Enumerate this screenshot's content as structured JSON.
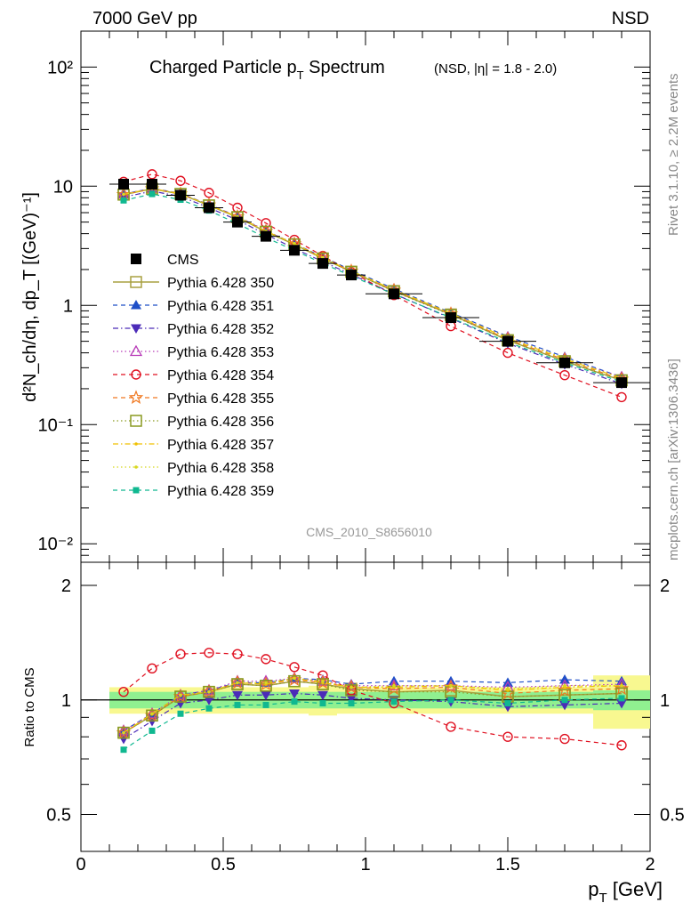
{
  "header": {
    "energy": "7000 GeV pp",
    "process": "NSD"
  },
  "title_main": "Charged Particle p",
  "title_sub": "T",
  "title_tail": " Spectrum",
  "title_small": "(NSD, |η| = 1.8 - 2.0)",
  "ylabel_main": "d²N_ch/dη, dp_T [(GeV)⁻¹]",
  "ylabel_ratio": "Ratio to CMS",
  "xlabel": "p",
  "xlabel_sub": "T",
  "xlabel_unit": " [GeV]",
  "watermark": "CMS_2010_S8656010",
  "side_top": "Rivet 3.1.10, ≥ 2.2M events",
  "side_bottom": "mcplots.cern.ch [arXiv:1306.3436]",
  "colors": {
    "cms": "#000000",
    "p350": "#a8a040",
    "p351": "#1f4fc8",
    "p352": "#4b2bb8",
    "p353": "#b83bb8",
    "p354": "#e01020",
    "p355": "#f07820",
    "p356": "#8a9a20",
    "p357": "#f0c000",
    "p358": "#d8d820",
    "p359": "#10b890",
    "band_inner": "#90f090",
    "band_outer": "#f8f890"
  },
  "chart_data": {
    "type": "line",
    "xlabel": "p_T [GeV]",
    "ylabel": "d²N_ch/dη, dp_T [(GeV)⁻¹]",
    "ylabel_ratio": "Ratio to CMS",
    "xlim": [
      0,
      2.0
    ],
    "ylim": [
      0.007,
      200
    ],
    "yscale": "log",
    "ratio_ylim": [
      0.4,
      2.3
    ],
    "ratio_yscale": "log",
    "legend_position": "left-middle",
    "x": [
      0.15,
      0.25,
      0.35,
      0.45,
      0.55,
      0.65,
      0.75,
      0.85,
      0.95,
      1.1,
      1.3,
      1.5,
      1.7,
      1.9
    ],
    "x_errors": [
      [
        0.1,
        0.2
      ],
      [
        0.2,
        0.3
      ],
      [
        0.3,
        0.4
      ],
      [
        0.4,
        0.5
      ],
      [
        0.5,
        0.6
      ],
      [
        0.6,
        0.7
      ],
      [
        0.7,
        0.8
      ],
      [
        0.8,
        0.9
      ],
      [
        0.9,
        1.0
      ],
      [
        1.0,
        1.2
      ],
      [
        1.2,
        1.4
      ],
      [
        1.4,
        1.6
      ],
      [
        1.6,
        1.8
      ],
      [
        1.8,
        2.0
      ]
    ],
    "xticks": [
      "0",
      "0.5",
      "1",
      "1.5",
      "2"
    ],
    "yticks_main": [
      "10⁻²",
      "10⁻¹",
      "1",
      "10",
      "10²"
    ],
    "yticks_ratio": [
      "0.5",
      "1",
      "2"
    ],
    "band_inner": [
      0.05,
      0.05,
      0.05,
      0.05,
      0.05,
      0.05,
      0.05,
      0.05,
      0.05,
      0.05,
      0.05,
      0.05,
      0.05,
      0.06
    ],
    "band_outer": [
      0.08,
      0.08,
      0.08,
      0.08,
      0.08,
      0.08,
      0.08,
      0.09,
      0.08,
      0.08,
      0.08,
      0.08,
      0.08,
      0.16
    ],
    "series": [
      {
        "name": "CMS",
        "key": "cms",
        "marker": "square-filled",
        "line": "none",
        "values": [
          10.4,
          10.4,
          8.4,
          6.6,
          5.0,
          3.8,
          2.9,
          2.25,
          1.8,
          1.25,
          0.79,
          0.5,
          0.33,
          0.225
        ],
        "ratio": [
          1,
          1,
          1,
          1,
          1,
          1,
          1,
          1,
          1,
          1,
          1,
          1,
          1,
          1
        ]
      },
      {
        "name": "Pythia 6.428 350",
        "key": "p350",
        "marker": "square-open",
        "line": "solid",
        "values": [
          8.5,
          9.5,
          8.6,
          6.9,
          5.5,
          4.15,
          3.25,
          2.48,
          1.92,
          1.32,
          0.84,
          0.51,
          0.34,
          0.235
        ],
        "ratio": [
          0.82,
          0.91,
          1.02,
          1.05,
          1.1,
          1.09,
          1.12,
          1.1,
          1.07,
          1.05,
          1.06,
          1.02,
          1.03,
          1.04
        ]
      },
      {
        "name": "Pythia 6.428 351",
        "key": "p351",
        "marker": "triangle-up-filled",
        "line": "dashed",
        "values": [
          8.6,
          9.6,
          8.7,
          7.0,
          5.6,
          4.2,
          3.3,
          2.55,
          1.98,
          1.38,
          0.87,
          0.55,
          0.37,
          0.25
        ],
        "ratio": [
          0.83,
          0.92,
          1.03,
          1.06,
          1.11,
          1.11,
          1.14,
          1.13,
          1.1,
          1.12,
          1.12,
          1.11,
          1.13,
          1.12
        ]
      },
      {
        "name": "Pythia 6.428 352",
        "key": "p352",
        "marker": "triangle-down-filled",
        "line": "dashdot",
        "values": [
          8.1,
          9.1,
          8.2,
          6.6,
          5.2,
          3.95,
          3.0,
          2.33,
          1.82,
          1.25,
          0.78,
          0.48,
          0.32,
          0.22
        ],
        "ratio": [
          0.79,
          0.88,
          0.98,
          1.0,
          1.03,
          1.03,
          1.04,
          1.03,
          1.01,
          1.0,
          0.99,
          0.96,
          0.97,
          0.98
        ]
      },
      {
        "name": "Pythia 6.428 353",
        "key": "p353",
        "marker": "triangle-up-open",
        "line": "dotted",
        "values": [
          8.6,
          9.6,
          8.7,
          7.0,
          5.6,
          4.25,
          3.3,
          2.52,
          1.95,
          1.36,
          0.86,
          0.54,
          0.36,
          0.25
        ],
        "ratio": [
          0.83,
          0.92,
          1.03,
          1.06,
          1.12,
          1.12,
          1.14,
          1.12,
          1.09,
          1.09,
          1.09,
          1.08,
          1.09,
          1.1
        ]
      },
      {
        "name": "Pythia 6.428 354",
        "key": "p354",
        "marker": "circle-open",
        "line": "dashed",
        "values": [
          10.9,
          12.6,
          11.1,
          8.8,
          6.6,
          4.9,
          3.55,
          2.6,
          1.9,
          1.22,
          0.67,
          0.4,
          0.26,
          0.17
        ],
        "ratio": [
          1.05,
          1.21,
          1.32,
          1.33,
          1.32,
          1.28,
          1.22,
          1.16,
          1.06,
          0.98,
          0.85,
          0.8,
          0.79,
          0.76
        ]
      },
      {
        "name": "Pythia 6.428 355",
        "key": "p355",
        "marker": "star-open",
        "line": "dashed",
        "values": [
          8.5,
          9.5,
          8.6,
          6.95,
          5.55,
          4.18,
          3.28,
          2.5,
          1.94,
          1.34,
          0.85,
          0.52,
          0.35,
          0.24
        ],
        "ratio": [
          0.82,
          0.91,
          1.02,
          1.05,
          1.11,
          1.1,
          1.13,
          1.11,
          1.08,
          1.07,
          1.08,
          1.04,
          1.06,
          1.07
        ]
      },
      {
        "name": "Pythia 6.428 356",
        "key": "p356",
        "marker": "square-open",
        "line": "dotted",
        "values": [
          8.5,
          9.5,
          8.6,
          6.9,
          5.5,
          4.15,
          3.25,
          2.47,
          1.91,
          1.31,
          0.83,
          0.51,
          0.34,
          0.235
        ],
        "ratio": [
          0.82,
          0.91,
          1.02,
          1.05,
          1.1,
          1.09,
          1.12,
          1.1,
          1.06,
          1.05,
          1.05,
          1.02,
          1.03,
          1.04
        ]
      },
      {
        "name": "Pythia 6.428 357",
        "key": "p357",
        "marker": "dot",
        "line": "dashdot",
        "values": [
          8.55,
          9.55,
          8.65,
          6.95,
          5.55,
          4.2,
          3.3,
          2.5,
          1.94,
          1.35,
          0.86,
          0.53,
          0.355,
          0.245
        ],
        "ratio": [
          0.82,
          0.92,
          1.03,
          1.05,
          1.11,
          1.1,
          1.14,
          1.11,
          1.08,
          1.08,
          1.09,
          1.06,
          1.08,
          1.09
        ]
      },
      {
        "name": "Pythia 6.428 358",
        "key": "p358",
        "marker": "dot",
        "line": "dotted",
        "values": [
          8.55,
          9.55,
          8.65,
          6.95,
          5.55,
          4.2,
          3.3,
          2.52,
          1.95,
          1.36,
          0.86,
          0.535,
          0.36,
          0.245
        ],
        "ratio": [
          0.82,
          0.92,
          1.03,
          1.05,
          1.11,
          1.11,
          1.14,
          1.12,
          1.08,
          1.09,
          1.09,
          1.07,
          1.09,
          1.09
        ]
      },
      {
        "name": "Pythia 6.428 359",
        "key": "p359",
        "marker": "square-small-filled",
        "line": "dashed",
        "values": [
          7.6,
          8.6,
          7.7,
          6.25,
          4.85,
          3.7,
          2.9,
          2.25,
          1.77,
          1.24,
          0.79,
          0.49,
          0.33,
          0.228
        ],
        "ratio": [
          0.74,
          0.83,
          0.92,
          0.95,
          0.97,
          0.97,
          0.99,
          0.98,
          0.98,
          0.99,
          1.0,
          0.98,
          1.0,
          1.01
        ]
      }
    ]
  }
}
